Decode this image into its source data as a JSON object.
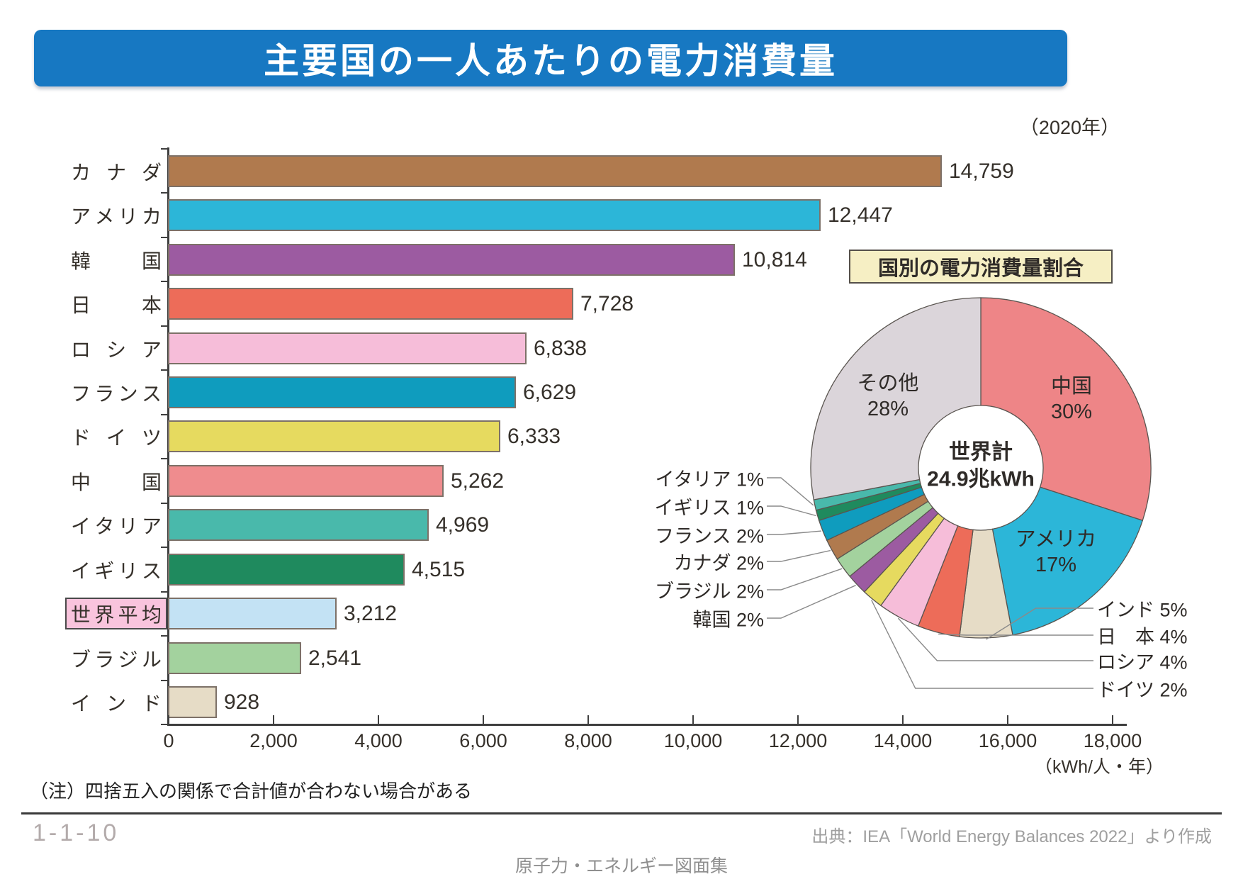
{
  "page": {
    "title": "主要国の一人あたりの電力消費量",
    "year_label": "（2020年）",
    "note": "（注）四捨五入の関係で合計値が合わない場合がある",
    "page_number": "1-1-10",
    "source": "出典：IEA「World Energy Balances 2022」より作成",
    "footer": "原子力・エネルギー図面集"
  },
  "chart_data": [
    {
      "type": "bar",
      "orientation": "horizontal",
      "categories": [
        "カナダ",
        "アメリカ",
        "韓国",
        "日本",
        "ロシア",
        "フランス",
        "ドイツ",
        "中国",
        "イタリア",
        "イギリス",
        "世界平均",
        "ブラジル",
        "インド"
      ],
      "values": [
        14759,
        12447,
        10814,
        7728,
        6838,
        6629,
        6333,
        5262,
        4969,
        4515,
        3212,
        2541,
        928
      ],
      "value_labels": [
        "14,759",
        "12,447",
        "10,814",
        "7,728",
        "6,838",
        "6,629",
        "6,333",
        "5,262",
        "4,969",
        "4,515",
        "3,212",
        "2,541",
        "928"
      ],
      "colors": [
        "#b07a4e",
        "#2cb6d8",
        "#9c5ba1",
        "#ed6c59",
        "#f6bdd9",
        "#0f9cbe",
        "#e6da5f",
        "#ef8c8e",
        "#49b9ab",
        "#1f8a5e",
        "#c3e2f4",
        "#a3d29e",
        "#e6dcc6"
      ],
      "highlight_category": "世界平均",
      "highlight_box_color": "#f9c4dd",
      "x_ticks": [
        0,
        2000,
        4000,
        6000,
        8000,
        10000,
        12000,
        14000,
        16000,
        18000
      ],
      "x_tick_labels": [
        "0",
        "2,000",
        "4,000",
        "6,000",
        "8,000",
        "10,000",
        "12,000",
        "14,000",
        "16,000",
        "18,000"
      ],
      "xlim": [
        0,
        18000
      ],
      "unit": "（kWh/人・年）",
      "grid": false
    },
    {
      "type": "pie",
      "subtype": "donut",
      "title": "国別の電力消費量割合",
      "center_label": {
        "line1": "世界計",
        "line2": "24.9兆kWh"
      },
      "direction": "clockwise",
      "start_angle_deg": 0,
      "legend_position": "none",
      "slices": [
        {
          "name": "中国",
          "pct": 30,
          "pct_label": "30%",
          "color": "#ee8587"
        },
        {
          "name": "アメリカ",
          "pct": 17,
          "pct_label": "17%",
          "color": "#2cb6d8"
        },
        {
          "name": "インド",
          "pct": 5,
          "pct_label": "5%",
          "color": "#e6dcc6"
        },
        {
          "name": "日本",
          "pct": 4,
          "pct_label": "4%",
          "color": "#ed6c59",
          "display": "日　本"
        },
        {
          "name": "ロシア",
          "pct": 4,
          "pct_label": "4%",
          "color": "#f6bdd9"
        },
        {
          "name": "ドイツ",
          "pct": 2,
          "pct_label": "2%",
          "color": "#e6da5f"
        },
        {
          "name": "韓国",
          "pct": 2,
          "pct_label": "2%",
          "color": "#9c5ba1"
        },
        {
          "name": "ブラジル",
          "pct": 2,
          "pct_label": "2%",
          "color": "#a3d29e"
        },
        {
          "name": "カナダ",
          "pct": 2,
          "pct_label": "2%",
          "color": "#b07a4e"
        },
        {
          "name": "フランス",
          "pct": 2,
          "pct_label": "2%",
          "color": "#0f9cbe"
        },
        {
          "name": "イギリス",
          "pct": 1,
          "pct_label": "1%",
          "color": "#1f8a5e"
        },
        {
          "name": "イタリア",
          "pct": 1,
          "pct_label": "1%",
          "color": "#49b9ab"
        },
        {
          "name": "その他",
          "pct": 28,
          "pct_label": "28%",
          "color": "#dbd5da"
        }
      ]
    }
  ]
}
